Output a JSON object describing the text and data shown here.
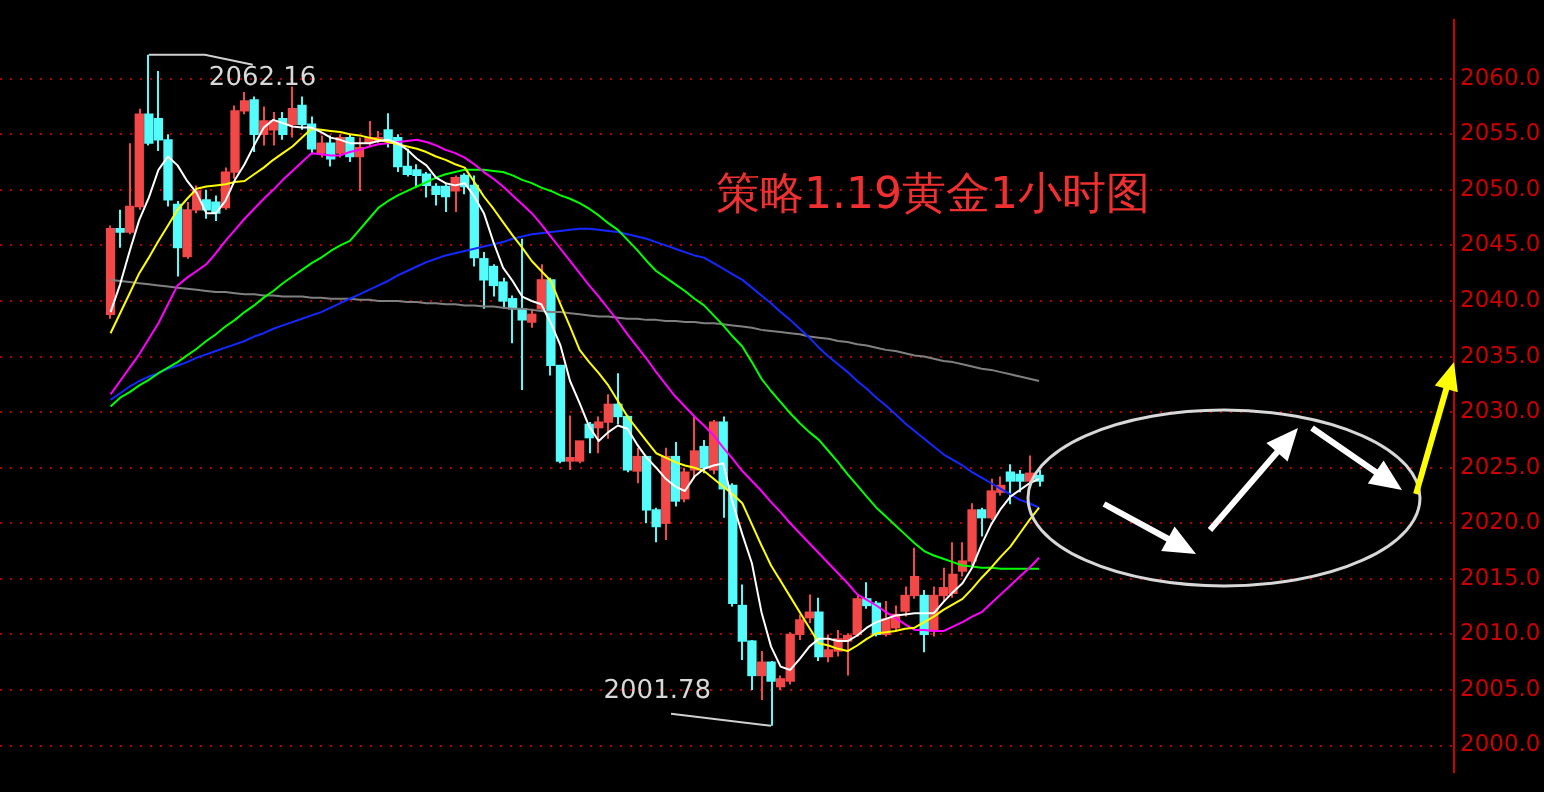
{
  "chart_data": {
    "type": "candlestick",
    "title": "策略1.19黄金1小时图",
    "categories": [
      null,
      null,
      null,
      null,
      null,
      null,
      null,
      null,
      null,
      null,
      null,
      null,
      null,
      null,
      null,
      null,
      null,
      null,
      null,
      null,
      null,
      null,
      null,
      null,
      null,
      null,
      null,
      null,
      null,
      null,
      null,
      null,
      null,
      null,
      null,
      null,
      null,
      null,
      null,
      null,
      null,
      null,
      null,
      null,
      null,
      null,
      null,
      null,
      null,
      null,
      null,
      null,
      null,
      null,
      null,
      null,
      null,
      null,
      null,
      null,
      null,
      null,
      null,
      null,
      null,
      null,
      null,
      null,
      null,
      null,
      null,
      null,
      null,
      null,
      null,
      null,
      null,
      null,
      null,
      null,
      null,
      null,
      null,
      null,
      null,
      null,
      null,
      null,
      null,
      null,
      null,
      null,
      null,
      null,
      null,
      null,
      null,
      null
    ],
    "ohlc": [
      [
        2038.8,
        2046.8,
        2038.4,
        2046.5
      ],
      [
        2046.5,
        2048.2,
        2044.8,
        2046.2
      ],
      [
        2046.2,
        2054.2,
        2046.0,
        2048.5
      ],
      [
        2048.5,
        2057.3,
        2048.2,
        2056.8
      ],
      [
        2056.8,
        2062.16,
        2054.0,
        2054.2
      ],
      [
        2056.4,
        2060.7,
        2053.5,
        2054.5
      ],
      [
        2054.5,
        2055.0,
        2048.5,
        2049.1
      ],
      [
        2048.7,
        2049.0,
        2042.2,
        2044.8
      ],
      [
        2044.0,
        2048.9,
        2043.8,
        2048.2
      ],
      [
        2048.2,
        2050.4,
        2047.9,
        2049.9
      ],
      [
        2049.1,
        2050.0,
        2047.4,
        2048.2
      ],
      [
        2048.9,
        2049.5,
        2047.2,
        2047.9
      ],
      [
        2048.4,
        2052.0,
        2048.2,
        2051.6
      ],
      [
        2051.6,
        2057.6,
        2051.0,
        2057.1
      ],
      [
        2057.1,
        2058.8,
        2056.8,
        2058.0
      ],
      [
        2058.1,
        2058.4,
        2053.4,
        2055.0
      ],
      [
        2055.0,
        2057.5,
        2054.0,
        2056.2
      ],
      [
        2055.4,
        2057.0,
        2054.0,
        2056.2
      ],
      [
        2056.4,
        2057.0,
        2054.5,
        2055.0
      ],
      [
        2055.9,
        2059.3,
        2054.7,
        2057.3
      ],
      [
        2057.6,
        2058.4,
        2055.4,
        2055.9
      ],
      [
        2055.9,
        2056.6,
        2053.2,
        2053.7
      ],
      [
        2053.3,
        2054.9,
        2052.9,
        2054.2
      ],
      [
        2054.2,
        2054.9,
        2052.1,
        2052.8
      ],
      [
        2053.3,
        2055.0,
        2052.9,
        2054.7
      ],
      [
        2054.7,
        2055.0,
        2052.5,
        2053.0
      ],
      [
        2053.0,
        2054.7,
        2049.9,
        2053.8
      ],
      [
        2054.2,
        2056.2,
        2053.8,
        2054.7
      ],
      [
        2054.4,
        2055.3,
        2054.2,
        2054.7
      ],
      [
        2055.4,
        2056.9,
        2053.8,
        2054.4
      ],
      [
        2054.7,
        2055.0,
        2051.6,
        2052.1
      ],
      [
        2052.1,
        2053.7,
        2051.2,
        2051.4
      ],
      [
        2051.8,
        2052.3,
        2050.3,
        2051.3
      ],
      [
        2051.4,
        2051.6,
        2049.3,
        2050.4
      ],
      [
        2050.3,
        2050.6,
        2048.6,
        2049.6
      ],
      [
        2050.3,
        2050.5,
        2048.0,
        2049.4
      ],
      [
        2049.9,
        2051.3,
        2048.0,
        2051.1
      ],
      [
        2051.3,
        2051.5,
        2049.6,
        2050.3
      ],
      [
        2050.4,
        2051.3,
        2043.1,
        2043.9
      ],
      [
        2043.8,
        2044.4,
        2039.3,
        2041.9
      ],
      [
        2043.1,
        2043.3,
        2040.4,
        2041.4
      ],
      [
        2041.7,
        2042.1,
        2039.3,
        2040.0
      ],
      [
        2040.2,
        2040.5,
        2036.2,
        2039.3
      ],
      [
        2039.3,
        2045.6,
        2032.0,
        2038.3
      ],
      [
        2038.1,
        2039.3,
        2037.6,
        2038.8
      ],
      [
        2039.3,
        2043.3,
        2039.0,
        2041.9
      ],
      [
        2041.9,
        2042.1,
        2033.3,
        2034.2
      ],
      [
        2034.2,
        2034.2,
        2025.4,
        2025.6
      ],
      [
        2025.6,
        2029.7,
        2024.8,
        2025.9
      ],
      [
        2025.6,
        2027.4,
        2025.4,
        2027.4
      ],
      [
        2028.9,
        2029.1,
        2026.3,
        2027.7
      ],
      [
        2028.6,
        2029.6,
        2026.3,
        2029.1
      ],
      [
        2029.1,
        2031.6,
        2027.6,
        2030.7
      ],
      [
        2030.7,
        2033.5,
        2028.9,
        2029.6
      ],
      [
        2029.6,
        2029.7,
        2024.6,
        2024.8
      ],
      [
        2024.7,
        2026.8,
        2023.6,
        2026.0
      ],
      [
        2026.0,
        2026.0,
        2020.0,
        2021.2
      ],
      [
        2021.2,
        2021.4,
        2018.3,
        2019.7
      ],
      [
        2020.0,
        2026.8,
        2018.5,
        2026.0
      ],
      [
        2026.0,
        2027.3,
        2021.5,
        2022.0
      ],
      [
        2022.2,
        2025.0,
        2021.9,
        2024.6
      ],
      [
        2024.8,
        2029.6,
        2024.0,
        2026.5
      ],
      [
        2026.9,
        2027.5,
        2024.5,
        2025.0
      ],
      [
        2024.8,
        2029.3,
        2024.4,
        2029.1
      ],
      [
        2029.1,
        2029.6,
        2020.5,
        2023.1
      ],
      [
        2023.4,
        2023.6,
        2012.5,
        2012.8
      ],
      [
        2012.6,
        2014.5,
        2007.7,
        2009.4
      ],
      [
        2009.4,
        2009.5,
        2005.0,
        2006.3
      ],
      [
        2006.3,
        2008.5,
        2004.1,
        2007.5
      ],
      [
        2007.5,
        2007.6,
        2001.78,
        2005.8
      ],
      [
        2005.3,
        2006.3,
        2005.0,
        2006.0
      ],
      [
        2005.8,
        2010.2,
        2005.5,
        2010.0
      ],
      [
        2010.0,
        2011.8,
        2009.5,
        2011.3
      ],
      [
        2011.5,
        2013.6,
        2011.0,
        2012.0
      ],
      [
        2012.0,
        2013.3,
        2007.6,
        2008.0
      ],
      [
        2008.0,
        2010.0,
        2007.5,
        2008.6
      ],
      [
        2008.5,
        2010.4,
        2008.0,
        2009.6
      ],
      [
        2009.4,
        2010.1,
        2006.3,
        2009.9
      ],
      [
        2010.0,
        2013.6,
        2009.8,
        2013.2
      ],
      [
        2013.2,
        2014.7,
        2012.3,
        2012.6
      ],
      [
        2012.8,
        2013.0,
        2009.8,
        2010.0
      ],
      [
        2010.0,
        2013.0,
        2009.8,
        2011.4
      ],
      [
        2010.6,
        2012.6,
        2010.3,
        2011.8
      ],
      [
        2012.1,
        2014.3,
        2011.6,
        2013.5
      ],
      [
        2013.5,
        2017.8,
        2013.2,
        2015.2
      ],
      [
        2013.5,
        2014.0,
        2008.4,
        2010.0
      ],
      [
        2010.3,
        2014.3,
        2009.8,
        2013.5
      ],
      [
        2013.5,
        2016.0,
        2013.0,
        2014.2
      ],
      [
        2013.7,
        2018.3,
        2013.3,
        2015.4
      ],
      [
        2015.7,
        2018.3,
        2015.2,
        2016.6
      ],
      [
        2016.6,
        2021.8,
        2016.0,
        2021.2
      ],
      [
        2021.2,
        2021.4,
        2018.8,
        2020.5
      ],
      [
        2020.5,
        2024.0,
        2020.3,
        2022.9
      ],
      [
        2022.8,
        2024.2,
        2022.5,
        2023.4
      ],
      [
        2024.6,
        2025.3,
        2021.7,
        2023.8
      ],
      [
        2024.4,
        2024.8,
        2022.8,
        2023.8
      ],
      [
        2023.8,
        2026.1,
        2023.3,
        2024.5
      ],
      [
        2024.3,
        2024.8,
        2023.3,
        2023.8
      ]
    ],
    "colors": [
      "#f24848",
      "#54fcfc",
      "#f24848",
      "#f24848",
      "#54fcfc",
      "#54fcfc",
      "#54fcfc",
      "#54fcfc",
      "#f24848",
      "#f24848",
      "#54fcfc",
      "#54fcfc",
      "#f24848",
      "#f24848",
      "#f24848",
      "#54fcfc",
      "#f24848",
      "#f24848",
      "#54fcfc",
      "#f24848",
      "#54fcfc",
      "#54fcfc",
      "#f24848",
      "#54fcfc",
      "#f24848",
      "#54fcfc",
      "#f24848",
      "#f24848",
      "#f24848",
      "#54fcfc",
      "#54fcfc",
      "#54fcfc",
      "#54fcfc",
      "#54fcfc",
      "#54fcfc",
      "#54fcfc",
      "#f24848",
      "#54fcfc",
      "#54fcfc",
      "#54fcfc",
      "#54fcfc",
      "#54fcfc",
      "#54fcfc",
      "#54fcfc",
      "#f24848",
      "#f24848",
      "#54fcfc",
      "#54fcfc",
      "#f24848",
      "#f24848",
      "#54fcfc",
      "#f24848",
      "#f24848",
      "#54fcfc",
      "#54fcfc",
      "#f24848",
      "#54fcfc",
      "#54fcfc",
      "#f24848",
      "#54fcfc",
      "#f24848",
      "#f24848",
      "#54fcfc",
      "#f24848",
      "#54fcfc",
      "#54fcfc",
      "#54fcfc",
      "#54fcfc",
      "#f24848",
      "#54fcfc",
      "#f24848",
      "#f24848",
      "#f24848",
      "#f24848",
      "#54fcfc",
      "#f24848",
      "#f24848",
      "#f24848",
      "#f24848",
      "#54fcfc",
      "#54fcfc",
      "#f24848",
      "#f24848",
      "#f24848",
      "#f24848",
      "#54fcfc",
      "#f24848",
      "#f24848",
      "#f24848",
      "#f24848",
      "#f24848",
      "#54fcfc",
      "#f24848",
      "#f24848",
      "#54fcfc",
      "#54fcfc",
      "#f24848",
      "#54fcfc"
    ],
    "series": [
      {
        "type": "line",
        "color": "#ffffff",
        "values": [
          2039.0,
          2041.5,
          2044.5,
          2047.3,
          2049.3,
          2051.8,
          2053.0,
          2052.2,
          2050.8,
          2049.7,
          2047.9,
          2047.9,
          2049.0,
          2050.9,
          2052.3,
          2054.0,
          2055.6,
          2056.3,
          2056.0,
          2055.7,
          2055.6,
          2055.6,
          2055.2,
          2054.7,
          2054.5,
          2054.2,
          2054.2,
          2054.2,
          2054.4,
          2054.5,
          2054.2,
          2053.6,
          2052.8,
          2052.2,
          2051.1,
          2050.6,
          2050.4,
          2050.6,
          2049.4,
          2047.9,
          2045.3,
          2043.0,
          2041.8,
          2040.4,
          2040.0,
          2039.7,
          2038.0,
          2036.0,
          2032.8,
          2030.8,
          2028.7,
          2027.4,
          2028.2,
          2028.8,
          2028.5,
          2027.1,
          2025.9,
          2025.0,
          2024.0,
          2023.3,
          2022.9,
          2024.2,
          2024.9,
          2025.2,
          2025.4,
          2021.8,
          2019.0,
          2016.4,
          2012.0,
          2008.9,
          2007.1,
          2006.8,
          2007.8,
          2008.9,
          2009.6,
          2009.6,
          2009.4,
          2009.4,
          2009.9,
          2010.6,
          2011.1,
          2011.4,
          2011.7,
          2011.8,
          2011.9,
          2011.9,
          2011.9,
          2012.9,
          2013.8,
          2014.6,
          2016.0,
          2018.1,
          2019.9,
          2021.3,
          2022.4,
          2023.0,
          2023.6,
          2024.0
        ]
      },
      {
        "type": "line",
        "color": "#ffff00",
        "values": [
          2037.1,
          2038.9,
          2040.7,
          2042.5,
          2043.9,
          2045.4,
          2046.8,
          2048.2,
          2049.2,
          2050.1,
          2050.3,
          2050.4,
          2050.5,
          2050.7,
          2050.8,
          2051.4,
          2052.0,
          2052.7,
          2053.3,
          2053.9,
          2054.7,
          2055.5,
          2055.4,
          2055.3,
          2055.2,
          2055.0,
          2054.9,
          2054.7,
          2054.5,
          2054.3,
          2054.1,
          2053.9,
          2053.7,
          2053.4,
          2053.0,
          2052.7,
          2052.3,
          2052.0,
          2050.7,
          2049.4,
          2048.3,
          2047.1,
          2045.9,
          2044.8,
          2043.6,
          2042.7,
          2041.8,
          2039.7,
          2037.7,
          2035.6,
          2034.5,
          2033.5,
          2032.4,
          2031.0,
          2029.6,
          2028.5,
          2027.4,
          2026.3,
          2025.9,
          2025.5,
          2025.2,
          2025.0,
          2024.7,
          2024.0,
          2023.3,
          2022.6,
          2021.8,
          2019.9,
          2018.0,
          2016.2,
          2014.8,
          2013.4,
          2012.0,
          2010.6,
          2009.2,
          2009.0,
          2008.7,
          2008.5,
          2009.0,
          2009.6,
          2010.1,
          2010.2,
          2010.3,
          2010.5,
          2010.6,
          2011.1,
          2011.6,
          2012.2,
          2012.7,
          2013.2,
          2014.1,
          2015.1,
          2016.0,
          2017.0,
          2017.9,
          2019.1,
          2020.3,
          2021.4
        ]
      },
      {
        "type": "line",
        "color": "#ff00ff",
        "values": [
          2031.6,
          2032.8,
          2034.0,
          2035.2,
          2036.6,
          2038.0,
          2039.7,
          2041.4,
          2042.1,
          2042.7,
          2043.3,
          2044.3,
          2045.4,
          2046.4,
          2047.4,
          2048.3,
          2049.2,
          2050.0,
          2050.9,
          2051.7,
          2052.5,
          2053.3,
          2053.2,
          2053.1,
          2053.1,
          2053.4,
          2053.6,
          2053.9,
          2054.1,
          2054.2,
          2054.3,
          2054.4,
          2054.5,
          2054.3,
          2054.0,
          2053.6,
          2053.3,
          2052.9,
          2052.3,
          2051.6,
          2051.0,
          2050.3,
          2049.5,
          2048.7,
          2047.9,
          2046.9,
          2045.8,
          2044.7,
          2043.6,
          2042.5,
          2041.4,
          2040.4,
          2039.3,
          2038.2,
          2037.0,
          2035.9,
          2034.8,
          2033.6,
          2032.5,
          2031.4,
          2030.5,
          2029.6,
          2028.8,
          2027.9,
          2026.8,
          2025.8,
          2024.7,
          2023.8,
          2022.9,
          2021.9,
          2021.0,
          2020.0,
          2019.1,
          2018.2,
          2017.3,
          2016.4,
          2015.5,
          2014.6,
          2013.6,
          2013.1,
          2012.6,
          2012.0,
          2011.5,
          2010.9,
          2010.4,
          2010.4,
          2010.3,
          2010.3,
          2010.7,
          2011.1,
          2011.6,
          2012.0,
          2012.8,
          2013.6,
          2014.4,
          2015.2,
          2016.0,
          2016.9
        ]
      },
      {
        "type": "line",
        "color": "#00ff00",
        "values": [
          2030.5,
          2031.3,
          2031.8,
          2032.4,
          2032.9,
          2033.5,
          2034.0,
          2034.5,
          2035.1,
          2035.7,
          2036.4,
          2037.0,
          2037.7,
          2038.3,
          2039.0,
          2039.6,
          2040.3,
          2040.9,
          2041.6,
          2042.2,
          2042.8,
          2043.4,
          2043.9,
          2044.5,
          2045.0,
          2045.4,
          2046.4,
          2047.4,
          2048.4,
          2049.0,
          2049.5,
          2049.9,
          2050.3,
          2050.7,
          2051.1,
          2051.4,
          2051.6,
          2051.8,
          2051.8,
          2051.8,
          2051.7,
          2051.6,
          2051.3,
          2050.9,
          2050.6,
          2050.2,
          2049.9,
          2049.5,
          2049.2,
          2048.8,
          2048.3,
          2047.7,
          2047.0,
          2046.4,
          2045.5,
          2044.6,
          2043.6,
          2042.7,
          2042.1,
          2041.5,
          2040.9,
          2040.2,
          2039.6,
          2038.7,
          2037.8,
          2036.8,
          2035.9,
          2034.5,
          2033.0,
          2031.9,
          2030.9,
          2029.9,
          2029.0,
          2028.2,
          2027.5,
          2026.5,
          2025.5,
          2024.4,
          2023.4,
          2022.4,
          2021.4,
          2020.6,
          2019.8,
          2019.0,
          2018.2,
          2017.5,
          2017.1,
          2016.8,
          2016.5,
          2016.2,
          2016.1,
          2016.0,
          2016.0,
          2015.9,
          2015.9,
          2015.9,
          2015.9,
          2015.9
        ]
      },
      {
        "type": "line",
        "color": "#1428ff",
        "values": [
          2031.1,
          2031.7,
          2032.3,
          2032.8,
          2033.2,
          2033.5,
          2033.9,
          2034.2,
          2034.5,
          2034.9,
          2035.2,
          2035.5,
          2035.8,
          2036.1,
          2036.4,
          2036.8,
          2037.1,
          2037.5,
          2037.8,
          2038.1,
          2038.4,
          2038.7,
          2039.0,
          2039.4,
          2039.8,
          2040.2,
          2040.6,
          2041.0,
          2041.4,
          2041.8,
          2042.3,
          2042.7,
          2043.1,
          2043.5,
          2043.8,
          2044.1,
          2044.3,
          2044.5,
          2044.7,
          2044.9,
          2045.1,
          2045.3,
          2045.6,
          2045.8,
          2046.0,
          2046.1,
          2046.2,
          2046.3,
          2046.4,
          2046.5,
          2046.5,
          2046.4,
          2046.3,
          2046.2,
          2046.0,
          2045.8,
          2045.6,
          2045.3,
          2045.0,
          2044.7,
          2044.4,
          2044.1,
          2043.9,
          2043.4,
          2042.9,
          2042.4,
          2041.9,
          2041.2,
          2040.5,
          2039.8,
          2039.0,
          2038.3,
          2037.5,
          2036.7,
          2035.8,
          2035.0,
          2034.3,
          2033.6,
          2032.8,
          2032.1,
          2031.3,
          2030.6,
          2029.8,
          2029.0,
          2028.3,
          2027.6,
          2026.9,
          2026.2,
          2025.7,
          2025.2,
          2024.6,
          2024.1,
          2023.6,
          2023.1,
          2022.6,
          2022.1,
          2021.8,
          2021.4
        ]
      },
      {
        "type": "line",
        "color": "#808080",
        "values": [
          2041.9,
          2041.8,
          2041.7,
          2041.6,
          2041.5,
          2041.4,
          2041.3,
          2041.2,
          2041.1,
          2041.0,
          2040.9,
          2040.8,
          2040.8,
          2040.7,
          2040.6,
          2040.6,
          2040.5,
          2040.5,
          2040.4,
          2040.4,
          2040.4,
          2040.3,
          2040.3,
          2040.2,
          2040.2,
          2040.2,
          2040.1,
          2040.1,
          2040.0,
          2040.0,
          2040.0,
          2039.9,
          2039.9,
          2039.8,
          2039.8,
          2039.7,
          2039.7,
          2039.6,
          2039.6,
          2039.5,
          2039.5,
          2039.4,
          2039.3,
          2039.3,
          2039.2,
          2039.1,
          2039.0,
          2039.0,
          2038.9,
          2038.8,
          2038.7,
          2038.6,
          2038.6,
          2038.5,
          2038.4,
          2038.4,
          2038.3,
          2038.3,
          2038.2,
          2038.2,
          2038.1,
          2038.1,
          2038.0,
          2038.0,
          2037.9,
          2037.8,
          2037.7,
          2037.6,
          2037.4,
          2037.3,
          2037.2,
          2037.1,
          2037.0,
          2036.8,
          2036.7,
          2036.6,
          2036.4,
          2036.3,
          2036.1,
          2036.0,
          2035.8,
          2035.6,
          2035.5,
          2035.3,
          2035.1,
          2035.0,
          2034.8,
          2034.6,
          2034.5,
          2034.3,
          2034.1,
          2033.9,
          2033.8,
          2033.6,
          2033.4,
          2033.2,
          2033.0,
          2032.8
        ]
      }
    ],
    "ylim": [
      1997.6,
      2065.3
    ],
    "yticks": [
      {
        "value": 2000,
        "label": "2000.0"
      },
      {
        "value": 2005,
        "label": "2005.0"
      },
      {
        "value": 2010,
        "label": "2010.0"
      },
      {
        "value": 2015,
        "label": "2015.0"
      },
      {
        "value": 2020,
        "label": "2020.0"
      },
      {
        "value": 2025,
        "label": "2025.0"
      },
      {
        "value": 2030,
        "label": "2030.0"
      },
      {
        "value": 2035,
        "label": "2035.0"
      },
      {
        "value": 2040,
        "label": "2040.0"
      },
      {
        "value": 2045,
        "label": "2045.0"
      },
      {
        "value": 2050,
        "label": "2050.0"
      },
      {
        "value": 2055,
        "label": "2055.0"
      },
      {
        "value": 2060,
        "label": "2060.0"
      }
    ],
    "annotations": [
      "2062.16",
      "2001.78"
    ],
    "grid": "y",
    "legend": false,
    "marker": "none",
    "line_style": "solid",
    "tick_labels": "y"
  }
}
